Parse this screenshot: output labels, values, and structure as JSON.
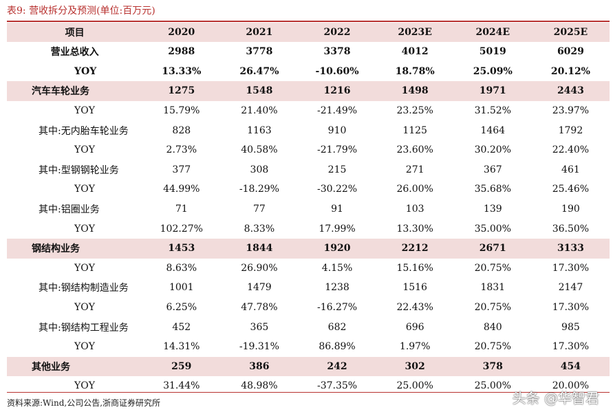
{
  "title": "表9:  营收拆分及预测(单位:百万元)",
  "header": [
    "项目",
    "2020",
    "2021",
    "2022",
    "2023E",
    "2024E",
    "2025E"
  ],
  "rows": [
    {
      "style": "bold",
      "indent": "center",
      "label": "营业总收入",
      "values": [
        "2988",
        "3778",
        "3378",
        "4012",
        "5019",
        "6029"
      ]
    },
    {
      "style": "bold",
      "indent": "ind1",
      "label": "YOY",
      "values": [
        "13.33%",
        "26.47%",
        "-10.60%",
        "18.78%",
        "25.09%",
        "20.12%"
      ]
    },
    {
      "style": "shade",
      "indent": "bold-left",
      "label": "汽车车轮业务",
      "values": [
        "1275",
        "1548",
        "1216",
        "1498",
        "1971",
        "2443"
      ]
    },
    {
      "style": "normal",
      "indent": "ind1",
      "label": "YOY",
      "values": [
        "15.79%",
        "21.40%",
        "-21.49%",
        "23.25%",
        "31.52%",
        "23.97%"
      ]
    },
    {
      "style": "normal",
      "indent": "ind2",
      "label": "其中:无内胎车轮业务",
      "values": [
        "828",
        "1163",
        "910",
        "1125",
        "1464",
        "1792"
      ]
    },
    {
      "style": "normal",
      "indent": "ind1",
      "label": "YOY",
      "values": [
        "2.73%",
        "40.58%",
        "-21.79%",
        "23.60%",
        "30.20%",
        "22.40%"
      ]
    },
    {
      "style": "normal",
      "indent": "ind2",
      "label": "其中:型钢钢轮业务",
      "values": [
        "377",
        "308",
        "215",
        "271",
        "367",
        "461"
      ]
    },
    {
      "style": "normal",
      "indent": "ind1",
      "label": "YOY",
      "values": [
        "44.99%",
        "-18.29%",
        "-30.22%",
        "26.00%",
        "35.68%",
        "25.46%"
      ]
    },
    {
      "style": "normal",
      "indent": "ind2",
      "label": "其中:铝圈业务",
      "values": [
        "71",
        "77",
        "91",
        "103",
        "139",
        "190"
      ]
    },
    {
      "style": "normal",
      "indent": "ind1",
      "label": "YOY",
      "values": [
        "102.27%",
        "8.33%",
        "17.99%",
        "13.30%",
        "35.00%",
        "36.50%"
      ]
    },
    {
      "style": "shade",
      "indent": "bold-left",
      "label": "钢结构业务",
      "values": [
        "1453",
        "1844",
        "1920",
        "2212",
        "2671",
        "3133"
      ]
    },
    {
      "style": "normal",
      "indent": "ind1",
      "label": "YOY",
      "values": [
        "8.63%",
        "26.90%",
        "4.15%",
        "15.16%",
        "20.75%",
        "17.30%"
      ]
    },
    {
      "style": "normal",
      "indent": "ind2",
      "label": "其中:钢结构制造业务",
      "values": [
        "1001",
        "1479",
        "1238",
        "1516",
        "1831",
        "2147"
      ]
    },
    {
      "style": "normal",
      "indent": "ind1",
      "label": "YOY",
      "values": [
        "6.25%",
        "47.78%",
        "-16.27%",
        "22.43%",
        "20.75%",
        "17.30%"
      ]
    },
    {
      "style": "normal",
      "indent": "ind2",
      "label": "其中:钢结构工程业务",
      "values": [
        "452",
        "365",
        "682",
        "696",
        "840",
        "985"
      ]
    },
    {
      "style": "normal",
      "indent": "ind1",
      "label": "YOY",
      "values": [
        "14.31%",
        "-19.31%",
        "86.89%",
        "1.97%",
        "20.75%",
        "17.30%"
      ]
    },
    {
      "style": "shade",
      "indent": "bold-left",
      "label": "其他业务",
      "values": [
        "259",
        "386",
        "242",
        "302",
        "378",
        "454"
      ]
    },
    {
      "style": "normal",
      "indent": "ind1",
      "label": "YOY",
      "values": [
        "31.44%",
        "48.98%",
        "-37.35%",
        "25.00%",
        "25.00%",
        "20.00%"
      ]
    }
  ],
  "source": "资料来源:Wind,公司公告,浙商证券研究所",
  "watermark": "头条 @华智君"
}
